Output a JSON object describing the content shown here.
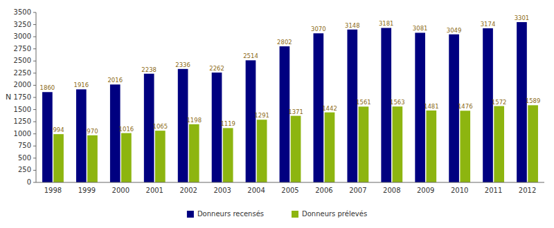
{
  "chart_data": {
    "type": "bar",
    "y_label": "N",
    "categories": [
      "1998",
      "1999",
      "2000",
      "2001",
      "2002",
      "2003",
      "2004",
      "2005",
      "2006",
      "2007",
      "2008",
      "2009",
      "2010",
      "2011",
      "2012"
    ],
    "series": [
      {
        "name": "Donneurs recensés",
        "color": "#000080",
        "values": [
          1860,
          1916,
          2016,
          2238,
          2336,
          2262,
          2514,
          2802,
          3070,
          3148,
          3181,
          3081,
          3049,
          3174,
          3301
        ]
      },
      {
        "name": "Donneurs prélevés",
        "color": "#8DB510",
        "values": [
          994,
          970,
          1016,
          1065,
          1198,
          1119,
          1291,
          1371,
          1442,
          1561,
          1563,
          1481,
          1476,
          1572,
          1589
        ]
      }
    ],
    "ylim": [
      0,
      3500
    ],
    "yticks": [
      0,
      250,
      500,
      750,
      1000,
      1250,
      1500,
      1750,
      2000,
      2250,
      2500,
      2750,
      3000,
      3250,
      3500
    ],
    "data_labels": true,
    "grid": false,
    "legend": "bottom"
  }
}
